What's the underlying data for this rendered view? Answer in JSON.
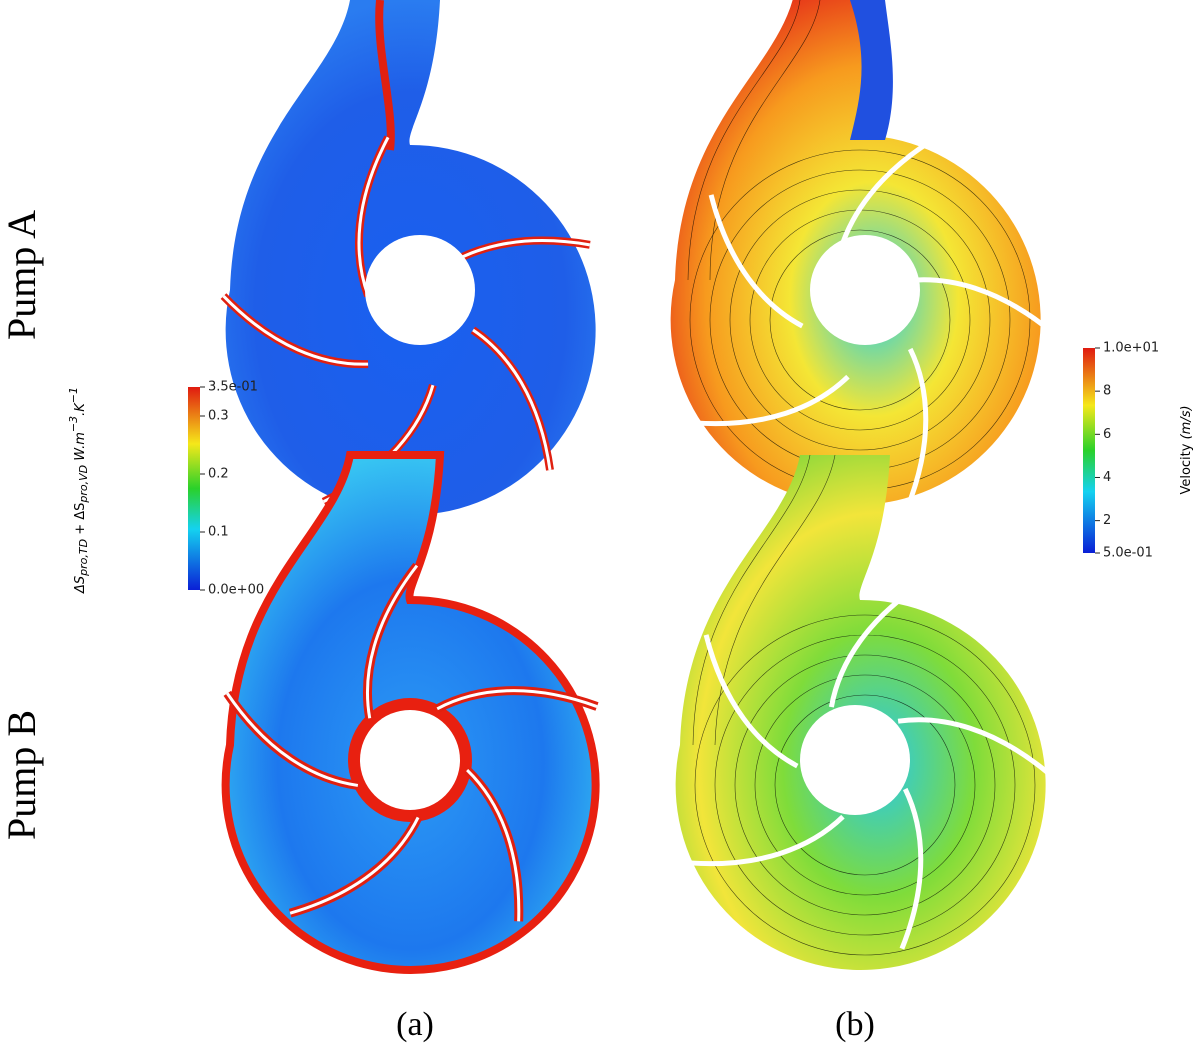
{
  "rows": [
    {
      "label": "Pump A"
    },
    {
      "label": "Pump B"
    }
  ],
  "columns": [
    {
      "label": "(a)"
    },
    {
      "label": "(b)"
    }
  ],
  "colorbars": [
    {
      "title_parts": [
        "ΔS",
        "pro,TD",
        " + ΔS",
        "pro,VD",
        "  W.m",
        "−3",
        ".K",
        "−1"
      ],
      "lim": [
        0,
        0.35
      ],
      "ticks": [
        {
          "value": 0,
          "label": "0.0e+00"
        },
        0.1,
        0.2,
        0.3,
        {
          "value": 0.35,
          "label": "3.5e-01"
        }
      ]
    },
    {
      "title_parts": [
        "Velocity ",
        "(m/s)"
      ],
      "lim": [
        0.5,
        10
      ],
      "ticks": [
        {
          "value": 0.5,
          "label": "5.0e-01"
        },
        2,
        4,
        6,
        8,
        {
          "value": 10,
          "label": "1.0e+01"
        }
      ]
    }
  ]
}
